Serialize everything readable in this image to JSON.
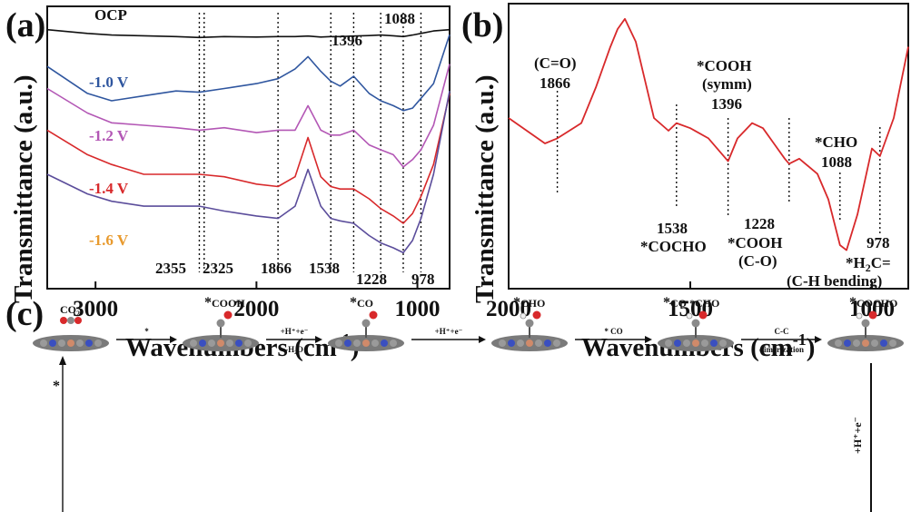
{
  "chart_data": [
    {
      "panel": "(a)",
      "type": "line",
      "xlabel": "Wavenumbers (cm-1)",
      "ylabel": "Transmittance (a.u.)",
      "xlim": [
        3300,
        800
      ],
      "x_ticks": [
        "3000",
        "2000",
        "1000"
      ],
      "x": [
        3300,
        3050,
        2900,
        2700,
        2500,
        2355,
        2200,
        2000,
        1866,
        1760,
        1680,
        1600,
        1538,
        1480,
        1396,
        1300,
        1228,
        1150,
        1088,
        1030,
        978,
        900,
        800
      ],
      "series": [
        {
          "name": "OCP",
          "color": "#111111",
          "values": [
            0.99,
            0.975,
            0.968,
            0.965,
            0.962,
            0.958,
            0.962,
            0.96,
            0.962,
            0.962,
            0.964,
            0.96,
            0.962,
            0.962,
            0.964,
            0.966,
            0.968,
            0.965,
            0.962,
            0.968,
            0.975,
            0.985,
            0.99
          ]
        },
        {
          "name": "-1.0 V",
          "color": "#2f569f",
          "values": [
            0.84,
            0.73,
            0.7,
            0.72,
            0.74,
            0.735,
            0.75,
            0.77,
            0.79,
            0.83,
            0.88,
            0.82,
            0.78,
            0.76,
            0.8,
            0.73,
            0.7,
            0.68,
            0.66,
            0.67,
            0.71,
            0.77,
            0.97
          ]
        },
        {
          "name": "-1.2 V",
          "color": "#b357b5",
          "values": [
            0.75,
            0.65,
            0.61,
            0.6,
            0.59,
            0.58,
            0.59,
            0.57,
            0.58,
            0.58,
            0.68,
            0.58,
            0.56,
            0.56,
            0.58,
            0.52,
            0.5,
            0.48,
            0.43,
            0.46,
            0.5,
            0.6,
            0.85
          ]
        },
        {
          "name": "-1.4 V",
          "color": "#d8292b",
          "values": [
            0.58,
            0.48,
            0.44,
            0.4,
            0.4,
            0.4,
            0.39,
            0.36,
            0.35,
            0.39,
            0.55,
            0.39,
            0.35,
            0.34,
            0.34,
            0.3,
            0.26,
            0.23,
            0.2,
            0.24,
            0.31,
            0.44,
            0.73
          ]
        },
        {
          "name": "-1.6 V",
          "color": "#5b4d9b",
          "values": [
            0.4,
            0.32,
            0.29,
            0.27,
            0.27,
            0.27,
            0.25,
            0.23,
            0.22,
            0.27,
            0.42,
            0.27,
            0.22,
            0.21,
            0.2,
            0.15,
            0.12,
            0.1,
            0.08,
            0.13,
            0.22,
            0.4,
            0.74
          ]
        }
      ],
      "reference_lines": [
        "2355",
        "2325",
        "1866",
        "1538",
        "1396",
        "1228",
        "1088",
        "978"
      ]
    },
    {
      "panel": "(b)",
      "type": "line",
      "xlabel": "Wavenumbers (cm-1)",
      "ylabel": "Transmittance (a.u.)",
      "xlim": [
        2000,
        900
      ],
      "x_ticks": [
        "2000",
        "1500",
        "1000"
      ],
      "x": [
        2000,
        1950,
        1900,
        1866,
        1800,
        1760,
        1720,
        1700,
        1680,
        1650,
        1620,
        1600,
        1560,
        1538,
        1500,
        1450,
        1396,
        1370,
        1330,
        1300,
        1270,
        1240,
        1228,
        1200,
        1150,
        1120,
        1088,
        1070,
        1040,
        1000,
        978,
        940,
        900
      ],
      "series": [
        {
          "name": "Spectrum",
          "color": "#d8292b",
          "values": [
            0.6,
            0.55,
            0.5,
            0.52,
            0.58,
            0.72,
            0.88,
            0.95,
            0.99,
            0.9,
            0.72,
            0.6,
            0.55,
            0.58,
            0.56,
            0.52,
            0.43,
            0.52,
            0.58,
            0.56,
            0.5,
            0.44,
            0.42,
            0.44,
            0.38,
            0.28,
            0.1,
            0.08,
            0.22,
            0.48,
            0.45,
            0.6,
            0.88
          ]
        }
      ],
      "reference_lines": [
        "1866",
        "1538",
        "1396",
        "1228",
        "1088",
        "978"
      ]
    }
  ],
  "panel_a": {
    "tag": "(a)",
    "ylabel": "Transmittance (a.u.)",
    "xlabel_main": "Wavenumbers (cm",
    "xlabel_sup": "-1",
    "xlabel_tail": ")",
    "ticks": [
      "3000",
      "2000",
      "1000"
    ],
    "potentials": [
      "OCP",
      "-1.0 V",
      "-1.2 V",
      "-1.4 V",
      "-1.6 V"
    ],
    "potential_colors": [
      "#111111",
      "#2f569f",
      "#b357b5",
      "#d8292b",
      "#e89a2e"
    ],
    "peak_labels": [
      "1396",
      "1088",
      "2355",
      "2325",
      "1866",
      "1538",
      "1228",
      "978"
    ]
  },
  "panel_b": {
    "tag": "(b)",
    "ylabel": "Transmittance (a.u.)",
    "xlabel_main": "Wavenumbers (cm",
    "xlabel_sup": "-1",
    "xlabel_tail": ")",
    "ticks": [
      "2000",
      "1500",
      "1000"
    ],
    "annotations": {
      "co": "(C=O)",
      "co_num": "1866",
      "cooh_symm1": "*COOH",
      "cooh_symm2": "(symm)",
      "cooh_symm_num": "1396",
      "cho": "*CHO",
      "cho_num": "1088",
      "cocho_num": "1538",
      "cocho": "*COCHO",
      "cooh_co_num": "1228",
      "cooh_co1": "*COOH",
      "cooh_co2": "(C-O)",
      "h2c_num": "978",
      "h2c_pre": "*H",
      "h2c_sub": "2",
      "h2c_post": "C=",
      "h2c_bend": "(C-H bending)"
    }
  },
  "panel_c": {
    "tag": "(c)",
    "states": [
      {
        "pre": "",
        "main": "CO",
        "sub": "2",
        "post": ""
      },
      {
        "pre": "*",
        "main": "COOH",
        "sub": "",
        "post": ""
      },
      {
        "pre": "*",
        "main": "CO",
        "sub": "",
        "post": ""
      },
      {
        "pre": "*",
        "main": "CHO",
        "sub": "",
        "post": ""
      },
      {
        "pre": "*",
        "main": "CO *CHO",
        "sub": "",
        "post": ""
      },
      {
        "pre": "*",
        "main": "COCHO",
        "sub": "",
        "post": ""
      }
    ],
    "arrows": [
      {
        "top": "*",
        "bottom": ""
      },
      {
        "top": "+H⁺+e⁻",
        "bottom": "-H₂O"
      },
      {
        "top": "+H⁺+e⁻",
        "bottom": ""
      },
      {
        "top": "* CO",
        "bottom": ""
      },
      {
        "top": "C-C",
        "bottom": "dimerization"
      }
    ],
    "side_label": "*",
    "down_label": "+H⁺+e⁻"
  },
  "colors": {
    "ocp": "#111111",
    "v10": "#2f569f",
    "v12": "#b357b5",
    "v14": "#d8292b",
    "v16": "#5b4d9b",
    "v16_label": "#e89a2e",
    "b_curve": "#d8292b"
  }
}
